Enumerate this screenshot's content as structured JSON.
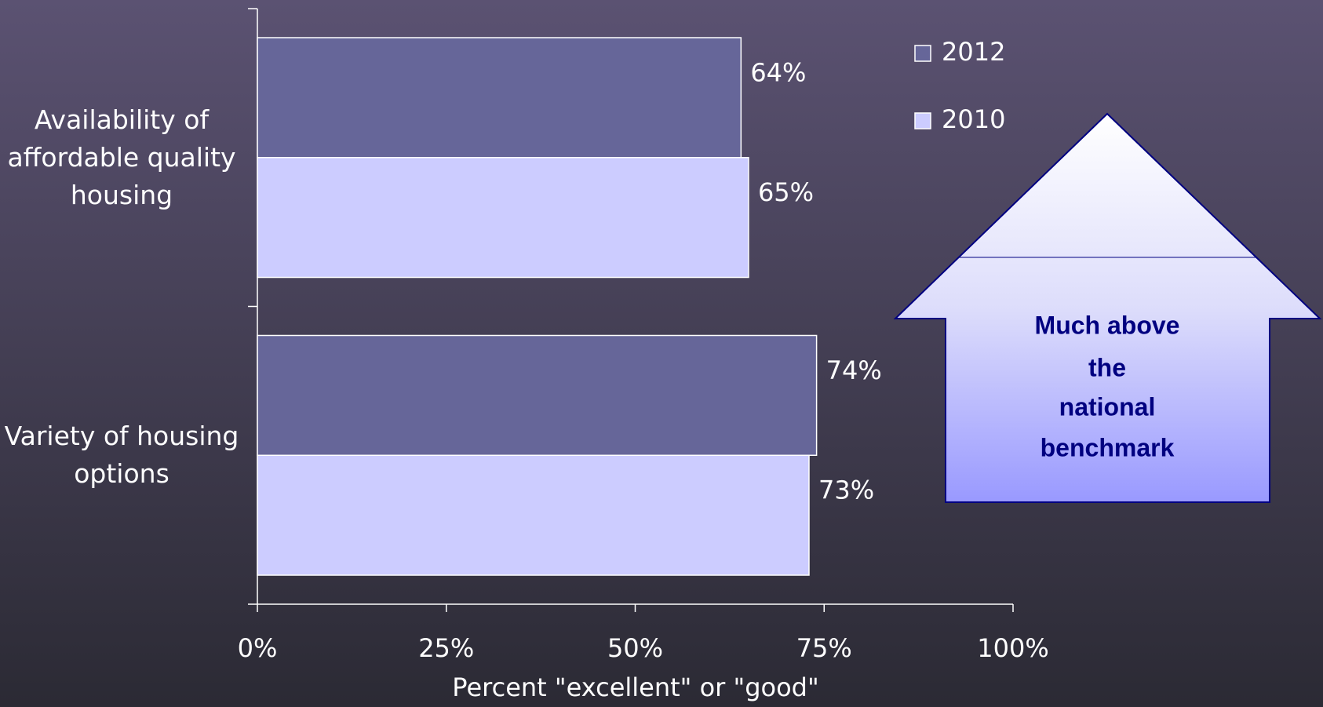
{
  "chart_data": {
    "type": "bar",
    "orientation": "horizontal",
    "categories": [
      "Availability of affordable quality housing",
      "Variety of housing options"
    ],
    "series": [
      {
        "name": "2012",
        "color": "#666699",
        "values": [
          64,
          74
        ],
        "value_labels": [
          "64%",
          "74%"
        ]
      },
      {
        "name": "2010",
        "color": "#ccccff",
        "values": [
          65,
          73
        ],
        "value_labels": [
          "65%",
          "73%"
        ]
      }
    ],
    "xlim": [
      0,
      100
    ],
    "xticks": [
      {
        "value": 0,
        "label": "0%"
      },
      {
        "value": 25,
        "label": "25%"
      },
      {
        "value": 50,
        "label": "50%"
      },
      {
        "value": 75,
        "label": "75%"
      },
      {
        "value": 100,
        "label": "100%"
      }
    ],
    "x_label": "Percent \"excellent\" or \"good\"",
    "legend": "upper right",
    "annotation_lines": [
      "Much above",
      "the",
      "national",
      "benchmark"
    ]
  }
}
